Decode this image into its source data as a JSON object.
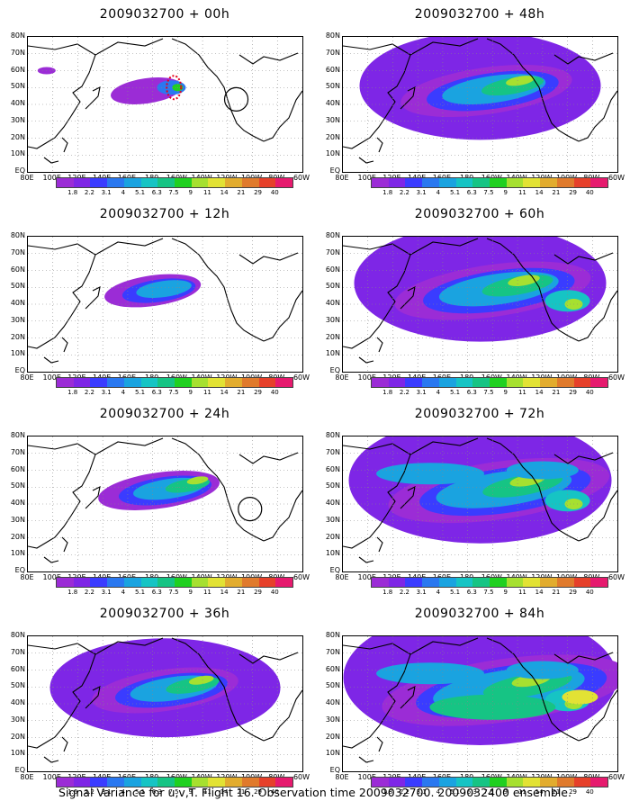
{
  "panels": [
    {
      "title": "2009032700 + 00h",
      "level": 0
    },
    {
      "title": "2009032700 + 48h",
      "level": 4
    },
    {
      "title": "2009032700 + 12h",
      "level": 1
    },
    {
      "title": "2009032700 + 60h",
      "level": 5
    },
    {
      "title": "2009032700 + 24h",
      "level": 2
    },
    {
      "title": "2009032700 + 72h",
      "level": 6
    },
    {
      "title": "2009032700 + 36h",
      "level": 3
    },
    {
      "title": "2009032700 + 84h",
      "level": 7
    }
  ],
  "lat_labels": [
    "80N",
    "70N",
    "60N",
    "50N",
    "40N",
    "30N",
    "20N",
    "10N",
    "EQ"
  ],
  "lon_labels": [
    "80E",
    "100E",
    "120E",
    "140E",
    "160E",
    "180",
    "160W",
    "140W",
    "120W",
    "100W",
    "80W",
    "60W"
  ],
  "colorbar": {
    "labels": [
      "1.8",
      "2.2",
      "3.1",
      "4",
      "5.1",
      "6.3",
      "7.5",
      "9",
      "11",
      "14",
      "21",
      "29",
      "40"
    ],
    "labels_alt": [
      "1.6",
      "2.2",
      "3.1",
      "4",
      "5.1",
      "6.3",
      "7.5",
      "9",
      "11",
      "14",
      "21",
      "29",
      "40"
    ],
    "colors": [
      "#9b2cd6",
      "#7e26e6",
      "#3a3cff",
      "#2a78f0",
      "#1aa3e0",
      "#16c4c4",
      "#16c484",
      "#20d020",
      "#a6e030",
      "#e2e234",
      "#e2ac2e",
      "#e07a2c",
      "#e6402a",
      "#e61a6e"
    ]
  },
  "footer": "Signal Variance for u,v,T. Flight 16. Observation time 2009032700. 2009032400 ensemble."
}
